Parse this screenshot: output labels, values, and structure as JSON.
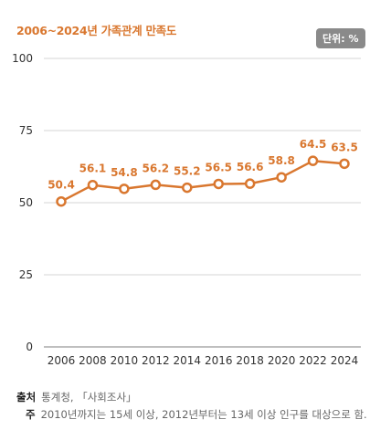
{
  "title": "2006~2024년 가족관계 만족도",
  "unit": "단위: %",
  "colors": {
    "accent": "#d9772f",
    "grid": "#d4d4d4",
    "axis": "#999999"
  },
  "chart_data": {
    "type": "line",
    "title": "2006~2024년 가족관계 만족도",
    "x": [
      "2006",
      "2008",
      "2010",
      "2012",
      "2014",
      "2016",
      "2018",
      "2020",
      "2022",
      "2024"
    ],
    "series": [
      {
        "values": [
          50.4,
          56.1,
          54.8,
          56.2,
          55.2,
          56.5,
          56.6,
          58.8,
          64.5,
          63.5
        ]
      }
    ],
    "ylim": [
      0,
      100
    ],
    "yticks": [
      0,
      25,
      50,
      75,
      100
    ],
    "grid": true,
    "data_labels": true
  },
  "footer": {
    "source_label": "출처",
    "source_text": "통계청, 「사회조사」",
    "note_label": "주",
    "note_text": "2010년까지는 15세 이상, 2012년부터는 13세 이상 인구를 대상으로 함."
  }
}
